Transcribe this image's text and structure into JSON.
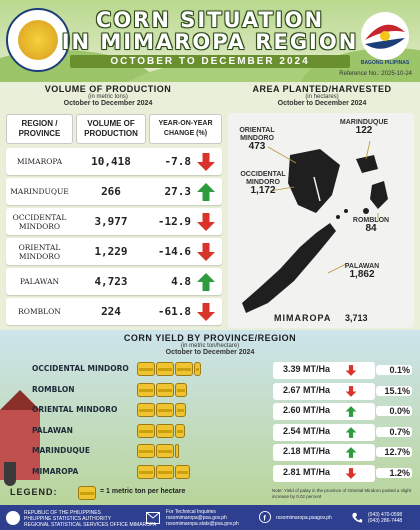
{
  "header": {
    "title_line1": "CORN SITUATION",
    "title_line2": "IN MIMAROPA REGION",
    "period": "OCTOBER TO DECEMBER 2024",
    "reference": "Reference No.: 2025-10-24",
    "psa_logo_icon": "psa-seal-icon",
    "bp_logo_text": "BAGONG PILIPINAS"
  },
  "volume": {
    "title": "VOLUME OF PRODUCTION",
    "unit": "(in metric tons)",
    "period": "October to December 2024",
    "headers": [
      "REGION / PROVINCE",
      "VOLUME OF PRODUCTION",
      "YEAR-ON-YEAR CHANGE (%)"
    ],
    "rows": [
      {
        "province": "MIMAROPA",
        "volume": "10,418",
        "change": "-7.8",
        "direction": "down"
      },
      {
        "province": "MARINDUQUE",
        "volume": "266",
        "change": "27.3",
        "direction": "up"
      },
      {
        "province": "OCCIDENTAL MINDORO",
        "volume": "3,977",
        "change": "-12.9",
        "direction": "down"
      },
      {
        "province": "ORIENTAL MINDORO",
        "volume": "1,229",
        "change": "-14.6",
        "direction": "down"
      },
      {
        "province": "PALAWAN",
        "volume": "4,723",
        "change": "4.8",
        "direction": "up"
      },
      {
        "province": "ROMBLON",
        "volume": "224",
        "change": "-61.8",
        "direction": "down"
      }
    ]
  },
  "area": {
    "title": "AREA PLANTED/HARVESTED",
    "unit": "(in hectares)",
    "period": "October to December 2024",
    "labels": [
      {
        "name": "ORIENTAL MINDORO",
        "value": "473"
      },
      {
        "name": "MARINDUQUE",
        "value": "122"
      },
      {
        "name": "OCCIDENTAL MINDORO",
        "value": "1,172"
      },
      {
        "name": "ROMBLON",
        "value": "84"
      },
      {
        "name": "PALAWAN",
        "value": "1,862"
      }
    ],
    "region_name": "MIMAROPA",
    "region_total": "3,713"
  },
  "yield": {
    "title": "CORN YIELD BY PROVINCE/REGION",
    "unit": "(in metric ton/hectare)",
    "period": "October to December 2024",
    "rows": [
      {
        "province": "OCCIDENTAL MINDORO",
        "value": "3.39 MT/Ha",
        "change": "0.1%",
        "direction": "down",
        "cobs": 3.39
      },
      {
        "province": "ROMBLON",
        "value": "2.67 MT/Ha",
        "change": "15.1%",
        "direction": "down",
        "cobs": 2.67
      },
      {
        "province": "ORIENTAL MINDORO",
        "value": "2.60 MT/Ha",
        "change": "0.0%",
        "direction": "up",
        "cobs": 2.6
      },
      {
        "province": "PALAWAN",
        "value": "2.54 MT/Ha",
        "change": "0.7%",
        "direction": "up",
        "cobs": 2.54
      },
      {
        "province": "MARINDUQUE",
        "value": "2.18 MT/Ha",
        "change": "12.7%",
        "direction": "up",
        "cobs": 2.18
      },
      {
        "province": "MIMAROPA",
        "value": "2.81 MT/Ha",
        "change": "1.2%",
        "direction": "down",
        "cobs": 2.81
      }
    ],
    "legend_label": "LEGEND:",
    "legend_text": "= 1 metric ton per hectare",
    "note": "Note: Yield of palay in the province of Oriental Mindoro posted a slight increase by 0.02 percent"
  },
  "footer": {
    "agency_line1": "REPUBLIC OF THE PHILIPPINES",
    "agency_line2": "PHILIPPINE STATISTICS AUTHORITY",
    "agency_line3": "REGIONAL STATISTICAL SERVICES OFFICE MIMAROPA",
    "inquiries_title": "For Technical Inquiries",
    "email1": "rssomimaropa@psa.gov.ph",
    "email2": "rssomimaropa.stats@psa.gov.ph",
    "social": "rssomimaropa.psagov.ph",
    "phone1": "(043) 470-0598",
    "phone2": "(043) 286-7448"
  },
  "colors": {
    "down": "#d9342b",
    "up": "#2e9b3e",
    "accent": "#6a8f2e",
    "footer": "#2e3f8f"
  }
}
